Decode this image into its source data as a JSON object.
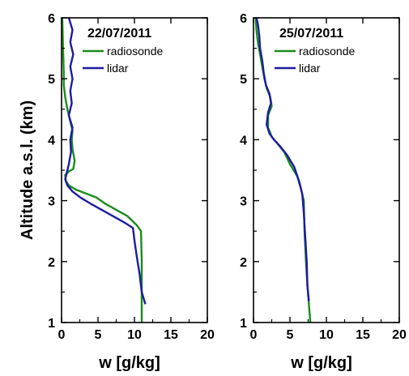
{
  "figure": {
    "ylabel": "Altitude a.s.l. (km)"
  },
  "chart_data": [
    {
      "type": "line",
      "title": "22/07/2011",
      "xlabel": "w [g/kg]",
      "ylabel": "Altitude a.s.l. (km)",
      "xlim": [
        0,
        20
      ],
      "ylim": [
        1,
        6
      ],
      "xticks": [
        0,
        5,
        10,
        15,
        20
      ],
      "yticks": [
        1,
        2,
        3,
        4,
        5,
        6
      ],
      "grid": false,
      "legend": "top-right",
      "series": [
        {
          "name": "radiosonde",
          "color": "#1a8c1a",
          "points": [
            [
              11.0,
              1.0
            ],
            [
              11.0,
              1.5
            ],
            [
              11.0,
              2.0
            ],
            [
              10.9,
              2.5
            ],
            [
              10.3,
              2.6
            ],
            [
              9.0,
              2.75
            ],
            [
              7.5,
              2.85
            ],
            [
              6.0,
              2.95
            ],
            [
              4.8,
              3.05
            ],
            [
              3.3,
              3.12
            ],
            [
              2.0,
              3.18
            ],
            [
              1.0,
              3.25
            ],
            [
              0.6,
              3.32
            ],
            [
              0.5,
              3.42
            ],
            [
              1.0,
              3.48
            ],
            [
              1.6,
              3.52
            ],
            [
              1.8,
              3.65
            ],
            [
              1.5,
              3.85
            ],
            [
              1.4,
              4.0
            ],
            [
              1.5,
              4.15
            ],
            [
              1.2,
              4.3
            ],
            [
              0.8,
              4.5
            ],
            [
              0.5,
              4.7
            ],
            [
              0.3,
              4.9
            ],
            [
              0.3,
              5.1
            ],
            [
              0.25,
              5.3
            ],
            [
              0.2,
              5.5
            ],
            [
              0.15,
              5.8
            ],
            [
              0.1,
              6.0
            ]
          ]
        },
        {
          "name": "lidar",
          "color": "#1c1ca0",
          "points": [
            [
              11.5,
              1.3
            ],
            [
              11.0,
              1.5
            ],
            [
              10.7,
              1.8
            ],
            [
              10.3,
              2.1
            ],
            [
              10.0,
              2.35
            ],
            [
              9.8,
              2.55
            ],
            [
              8.5,
              2.65
            ],
            [
              7.0,
              2.75
            ],
            [
              5.5,
              2.85
            ],
            [
              4.0,
              2.95
            ],
            [
              2.6,
              3.05
            ],
            [
              1.5,
              3.15
            ],
            [
              0.8,
              3.25
            ],
            [
              0.5,
              3.35
            ],
            [
              0.7,
              3.45
            ],
            [
              1.0,
              3.6
            ],
            [
              1.3,
              3.8
            ],
            [
              1.2,
              4.0
            ],
            [
              1.5,
              4.2
            ],
            [
              1.0,
              4.4
            ],
            [
              1.4,
              4.6
            ],
            [
              1.2,
              4.8
            ],
            [
              1.5,
              5.0
            ],
            [
              1.2,
              5.2
            ],
            [
              1.6,
              5.4
            ],
            [
              1.2,
              5.6
            ],
            [
              1.5,
              5.8
            ],
            [
              1.0,
              6.0
            ]
          ]
        }
      ]
    },
    {
      "type": "line",
      "title": "25/07/2011",
      "xlabel": "w [g/kg]",
      "ylabel": "",
      "xlim": [
        0,
        20
      ],
      "ylim": [
        1,
        6
      ],
      "xticks": [
        0,
        5,
        10,
        15,
        20
      ],
      "yticks": [
        1,
        2,
        3,
        4,
        5,
        6
      ],
      "grid": false,
      "legend": "top-right",
      "series": [
        {
          "name": "radiosonde",
          "color": "#1a8c1a",
          "points": [
            [
              7.8,
              1.0
            ],
            [
              7.6,
              1.3
            ],
            [
              7.4,
              1.6
            ],
            [
              7.2,
              2.0
            ],
            [
              7.0,
              2.5
            ],
            [
              6.9,
              3.0
            ],
            [
              6.5,
              3.2
            ],
            [
              6.0,
              3.4
            ],
            [
              5.0,
              3.6
            ],
            [
              4.2,
              3.8
            ],
            [
              3.2,
              3.95
            ],
            [
              2.5,
              4.05
            ],
            [
              2.0,
              4.2
            ],
            [
              2.0,
              4.4
            ],
            [
              2.5,
              4.55
            ],
            [
              2.3,
              4.7
            ],
            [
              1.8,
              4.85
            ],
            [
              1.5,
              5.0
            ],
            [
              1.2,
              5.2
            ],
            [
              0.9,
              5.4
            ],
            [
              0.6,
              5.6
            ],
            [
              0.4,
              5.8
            ],
            [
              0.3,
              6.0
            ]
          ]
        },
        {
          "name": "lidar",
          "color": "#1c1ca0",
          "points": [
            [
              7.6,
              1.35
            ],
            [
              7.4,
              1.6
            ],
            [
              7.3,
              2.0
            ],
            [
              7.1,
              2.4
            ],
            [
              6.9,
              2.8
            ],
            [
              6.7,
              3.1
            ],
            [
              6.3,
              3.3
            ],
            [
              5.6,
              3.55
            ],
            [
              4.6,
              3.75
            ],
            [
              3.6,
              3.9
            ],
            [
              2.8,
              4.0
            ],
            [
              2.2,
              4.1
            ],
            [
              1.8,
              4.25
            ],
            [
              2.0,
              4.45
            ],
            [
              2.4,
              4.6
            ],
            [
              2.2,
              4.75
            ],
            [
              1.7,
              4.9
            ],
            [
              1.4,
              5.1
            ],
            [
              1.2,
              5.3
            ],
            [
              0.9,
              5.5
            ],
            [
              0.8,
              5.7
            ],
            [
              0.6,
              5.9
            ],
            [
              0.4,
              6.0
            ]
          ]
        }
      ]
    }
  ]
}
